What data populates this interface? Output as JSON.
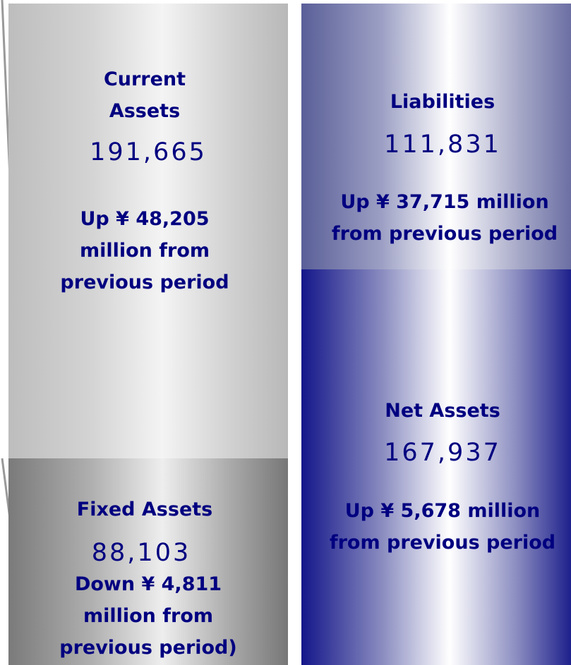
{
  "blocks": [
    {
      "label": "Current Assets",
      "value": "191,665",
      "change": "Up ¥ 48,205 million from previous period"
    },
    {
      "label": "Fixed Assets",
      "value": "88,103",
      "change": "Down ¥ 4,811 million from previous period)"
    },
    {
      "label": "Liabilities",
      "value": "111,831",
      "change": "Up ¥ 37,715 million from previous period"
    },
    {
      "label": "Net Assets",
      "value": "167,937",
      "change": "Up ¥ 5,678 million from previous period"
    }
  ]
}
